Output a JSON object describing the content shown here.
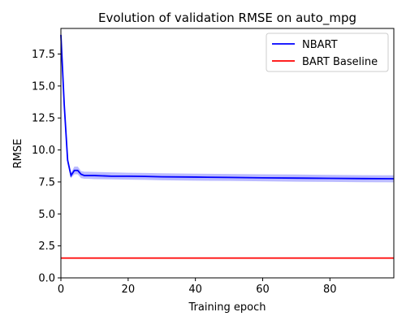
{
  "chart_data": {
    "type": "line",
    "title": "Evolution of validation RMSE on auto_mpg",
    "xlabel": "Training epoch",
    "ylabel": "RMSE",
    "xlim": [
      0,
      99
    ],
    "ylim": [
      0,
      19.5
    ],
    "xticks": [
      "0",
      "20",
      "40",
      "60",
      "80"
    ],
    "xtick_values": [
      0,
      20,
      40,
      60,
      80
    ],
    "yticks": [
      "0.0",
      "2.5",
      "5.0",
      "7.5",
      "10.0",
      "12.5",
      "15.0",
      "17.5"
    ],
    "ytick_values": [
      0,
      2.5,
      5,
      7.5,
      10,
      12.5,
      15,
      17.5
    ],
    "grid": false,
    "legend_position": "top-right",
    "series": [
      {
        "name": "NBART",
        "color": "#0000ff",
        "band_color": "#aaaaff",
        "x": [
          0,
          1,
          2,
          3,
          4,
          5,
          6,
          7,
          8,
          10,
          15,
          20,
          25,
          30,
          40,
          50,
          60,
          70,
          80,
          90,
          99
        ],
        "y": [
          19.0,
          13.5,
          9.2,
          8.0,
          8.4,
          8.4,
          8.1,
          8.0,
          8.0,
          8.0,
          7.95,
          7.95,
          7.93,
          7.9,
          7.88,
          7.85,
          7.82,
          7.8,
          7.78,
          7.76,
          7.75
        ],
        "lower": [
          19.0,
          13.2,
          8.9,
          7.8,
          8.1,
          8.1,
          7.8,
          7.75,
          7.75,
          7.72,
          7.7,
          7.68,
          7.66,
          7.63,
          7.6,
          7.58,
          7.55,
          7.52,
          7.5,
          7.48,
          7.47
        ],
        "upper": [
          19.0,
          13.8,
          9.5,
          8.2,
          8.7,
          8.7,
          8.35,
          8.3,
          8.3,
          8.28,
          8.25,
          8.22,
          8.2,
          8.18,
          8.15,
          8.12,
          8.1,
          8.08,
          8.05,
          8.03,
          8.02
        ]
      },
      {
        "name": "BART Baseline",
        "color": "#ff0000",
        "x": [
          0,
          99
        ],
        "y": [
          1.55,
          1.55
        ]
      }
    ]
  }
}
